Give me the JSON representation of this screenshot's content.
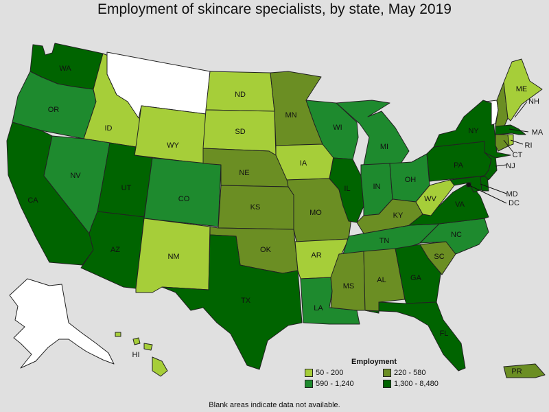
{
  "title": "Employment of skincare specialists, by state, May 2019",
  "legend": {
    "title": "Employment",
    "items": [
      {
        "label": "50 - 200",
        "color": "#a6ce39"
      },
      {
        "label": "220 - 580",
        "color": "#6b8e23"
      },
      {
        "label": "590 - 1,240",
        "color": "#1e8a2e"
      },
      {
        "label": "1,300 - 8,480",
        "color": "#006400"
      }
    ]
  },
  "blank_color": "#ffffff",
  "footnote": "Blank areas indicate data not available.",
  "states": [
    {
      "code": "WA",
      "label": "WA",
      "bin": 3
    },
    {
      "code": "OR",
      "label": "OR",
      "bin": 2
    },
    {
      "code": "CA",
      "label": "CA",
      "bin": 3
    },
    {
      "code": "ID",
      "label": "ID",
      "bin": 0
    },
    {
      "code": "NV",
      "label": "NV",
      "bin": 2
    },
    {
      "code": "MT",
      "label": "",
      "bin": null
    },
    {
      "code": "WY",
      "label": "WY",
      "bin": 0
    },
    {
      "code": "UT",
      "label": "UT",
      "bin": 3
    },
    {
      "code": "AZ",
      "label": "AZ",
      "bin": 3
    },
    {
      "code": "CO",
      "label": "CO",
      "bin": 2
    },
    {
      "code": "NM",
      "label": "NM",
      "bin": 0
    },
    {
      "code": "ND",
      "label": "ND",
      "bin": 0
    },
    {
      "code": "SD",
      "label": "SD",
      "bin": 0
    },
    {
      "code": "NE",
      "label": "NE",
      "bin": 1
    },
    {
      "code": "KS",
      "label": "KS",
      "bin": 1
    },
    {
      "code": "OK",
      "label": "OK",
      "bin": 1
    },
    {
      "code": "TX",
      "label": "TX",
      "bin": 3
    },
    {
      "code": "MN",
      "label": "MN",
      "bin": 1
    },
    {
      "code": "IA",
      "label": "IA",
      "bin": 0
    },
    {
      "code": "MO",
      "label": "MO",
      "bin": 1
    },
    {
      "code": "AR",
      "label": "AR",
      "bin": 0
    },
    {
      "code": "LA",
      "label": "LA",
      "bin": 2
    },
    {
      "code": "WI",
      "label": "WI",
      "bin": 2
    },
    {
      "code": "IL",
      "label": "IL",
      "bin": 3
    },
    {
      "code": "MI",
      "label": "MI",
      "bin": 2
    },
    {
      "code": "IN",
      "label": "IN",
      "bin": 2
    },
    {
      "code": "OH",
      "label": "OH",
      "bin": 2
    },
    {
      "code": "KY",
      "label": "KY",
      "bin": 1
    },
    {
      "code": "TN",
      "label": "TN",
      "bin": 2
    },
    {
      "code": "MS",
      "label": "MS",
      "bin": 1
    },
    {
      "code": "AL",
      "label": "AL",
      "bin": 1
    },
    {
      "code": "GA",
      "label": "GA",
      "bin": 3
    },
    {
      "code": "FL",
      "label": "FL",
      "bin": 3
    },
    {
      "code": "SC",
      "label": "SC",
      "bin": 1
    },
    {
      "code": "NC",
      "label": "NC",
      "bin": 2
    },
    {
      "code": "VA",
      "label": "VA",
      "bin": 3
    },
    {
      "code": "WV",
      "label": "WV",
      "bin": 0
    },
    {
      "code": "PA",
      "label": "PA",
      "bin": 3
    },
    {
      "code": "NY",
      "label": "NY",
      "bin": 3
    },
    {
      "code": "ME",
      "label": "ME",
      "bin": 0
    },
    {
      "code": "VT",
      "label": "",
      "bin": null
    },
    {
      "code": "NH",
      "label": "NH",
      "bin": 1
    },
    {
      "code": "MA",
      "label": "MA",
      "bin": 3
    },
    {
      "code": "RI",
      "label": "RI",
      "bin": 0
    },
    {
      "code": "CT",
      "label": "CT",
      "bin": 1
    },
    {
      "code": "NJ",
      "label": "NJ",
      "bin": 3
    },
    {
      "code": "DE",
      "label": "",
      "bin": 3
    },
    {
      "code": "MD",
      "label": "MD",
      "bin": 3
    },
    {
      "code": "DC",
      "label": "DC",
      "bin": 3
    },
    {
      "code": "AK",
      "label": "",
      "bin": null
    },
    {
      "code": "HI",
      "label": "HI",
      "bin": 0
    },
    {
      "code": "PR",
      "label": "PR",
      "bin": 1
    }
  ]
}
